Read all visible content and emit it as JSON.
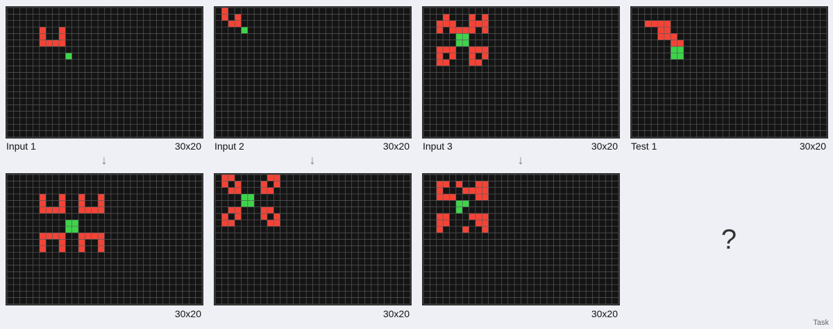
{
  "pairs": [
    {
      "label": "Input 1",
      "dims": "30x20",
      "out_dims": "30x20",
      "input": {
        "red": [
          [
            5,
            3
          ],
          [
            8,
            3
          ],
          [
            5,
            4
          ],
          [
            8,
            4
          ],
          [
            5,
            5
          ],
          [
            6,
            5
          ],
          [
            7,
            5
          ],
          [
            8,
            5
          ]
        ],
        "green": [
          [
            9,
            7
          ]
        ]
      },
      "output": {
        "red": [
          [
            5,
            3
          ],
          [
            8,
            3
          ],
          [
            11,
            3
          ],
          [
            14,
            3
          ],
          [
            5,
            4
          ],
          [
            8,
            4
          ],
          [
            11,
            4
          ],
          [
            14,
            4
          ],
          [
            5,
            5
          ],
          [
            6,
            5
          ],
          [
            7,
            5
          ],
          [
            8,
            5
          ],
          [
            11,
            5
          ],
          [
            12,
            5
          ],
          [
            13,
            5
          ],
          [
            14,
            5
          ],
          [
            5,
            9
          ],
          [
            6,
            9
          ],
          [
            7,
            9
          ],
          [
            8,
            9
          ],
          [
            11,
            9
          ],
          [
            12,
            9
          ],
          [
            13,
            9
          ],
          [
            14,
            9
          ],
          [
            5,
            10
          ],
          [
            8,
            10
          ],
          [
            11,
            10
          ],
          [
            14,
            10
          ],
          [
            5,
            11
          ],
          [
            8,
            11
          ],
          [
            11,
            11
          ],
          [
            14,
            11
          ]
        ],
        "green": [
          [
            9,
            7
          ],
          [
            10,
            7
          ],
          [
            9,
            8
          ],
          [
            10,
            8
          ]
        ]
      }
    },
    {
      "label": "Input 2",
      "dims": "30x20",
      "out_dims": "30x20",
      "input": {
        "red": [
          [
            1,
            0
          ],
          [
            1,
            1
          ],
          [
            3,
            1
          ],
          [
            2,
            2
          ],
          [
            3,
            2
          ]
        ],
        "green": [
          [
            4,
            3
          ]
        ]
      },
      "output": {
        "red": [
          [
            1,
            0
          ],
          [
            2,
            0
          ],
          [
            8,
            0
          ],
          [
            9,
            0
          ],
          [
            1,
            1
          ],
          [
            3,
            1
          ],
          [
            7,
            1
          ],
          [
            9,
            1
          ],
          [
            2,
            2
          ],
          [
            3,
            2
          ],
          [
            7,
            2
          ],
          [
            8,
            2
          ],
          [
            2,
            5
          ],
          [
            3,
            5
          ],
          [
            7,
            5
          ],
          [
            8,
            5
          ],
          [
            1,
            6
          ],
          [
            3,
            6
          ],
          [
            7,
            6
          ],
          [
            9,
            6
          ],
          [
            1,
            7
          ],
          [
            2,
            7
          ],
          [
            8,
            7
          ],
          [
            9,
            7
          ]
        ],
        "green": [
          [
            4,
            3
          ],
          [
            5,
            3
          ],
          [
            4,
            4
          ],
          [
            5,
            4
          ]
        ]
      }
    },
    {
      "label": "Input 3",
      "dims": "30x20",
      "out_dims": "30x20",
      "input": {
        "red": [
          [
            3,
            1
          ],
          [
            7,
            1
          ],
          [
            9,
            1
          ],
          [
            2,
            2
          ],
          [
            3,
            2
          ],
          [
            4,
            2
          ],
          [
            7,
            2
          ],
          [
            8,
            2
          ],
          [
            9,
            2
          ],
          [
            2,
            3
          ],
          [
            4,
            3
          ],
          [
            5,
            3
          ],
          [
            6,
            3
          ],
          [
            7,
            3
          ],
          [
            9,
            3
          ],
          [
            2,
            6
          ],
          [
            3,
            6
          ],
          [
            4,
            6
          ],
          [
            7,
            6
          ],
          [
            8,
            6
          ],
          [
            9,
            6
          ],
          [
            2,
            7
          ],
          [
            4,
            7
          ],
          [
            7,
            7
          ],
          [
            9,
            7
          ],
          [
            2,
            8
          ],
          [
            3,
            8
          ],
          [
            7,
            8
          ],
          [
            8,
            8
          ]
        ],
        "green": [
          [
            5,
            4
          ],
          [
            6,
            4
          ],
          [
            5,
            5
          ],
          [
            6,
            5
          ]
        ]
      },
      "output": {
        "red": [
          [
            2,
            1
          ],
          [
            3,
            1
          ],
          [
            5,
            1
          ],
          [
            8,
            1
          ],
          [
            9,
            1
          ],
          [
            2,
            2
          ],
          [
            6,
            2
          ],
          [
            7,
            2
          ],
          [
            8,
            2
          ],
          [
            9,
            2
          ],
          [
            2,
            3
          ],
          [
            3,
            3
          ],
          [
            4,
            3
          ],
          [
            8,
            3
          ],
          [
            9,
            3
          ],
          [
            2,
            6
          ],
          [
            3,
            6
          ],
          [
            7,
            6
          ],
          [
            8,
            6
          ],
          [
            9,
            6
          ],
          [
            2,
            7
          ],
          [
            3,
            7
          ],
          [
            8,
            7
          ],
          [
            9,
            7
          ],
          [
            2,
            8
          ],
          [
            6,
            8
          ],
          [
            9,
            8
          ]
        ],
        "green": [
          [
            5,
            4
          ],
          [
            6,
            4
          ],
          [
            5,
            5
          ]
        ]
      }
    }
  ],
  "test": {
    "label": "Test 1",
    "dims": "30x20",
    "input": {
      "red": [
        [
          2,
          2
        ],
        [
          3,
          2
        ],
        [
          4,
          2
        ],
        [
          5,
          2
        ],
        [
          4,
          3
        ],
        [
          5,
          3
        ],
        [
          4,
          4
        ],
        [
          5,
          4
        ],
        [
          6,
          4
        ],
        [
          6,
          5
        ],
        [
          7,
          5
        ]
      ],
      "green": [
        [
          6,
          6
        ],
        [
          7,
          6
        ],
        [
          6,
          7
        ],
        [
          7,
          7
        ]
      ]
    },
    "answer_placeholder": "?"
  },
  "arrow": "↓",
  "footer": "Task",
  "colors": {
    "background": "#141414",
    "gridline": "#5a5a5a",
    "red": "#f44336",
    "green": "#3dd44a",
    "frame": "#2a2a2a"
  }
}
